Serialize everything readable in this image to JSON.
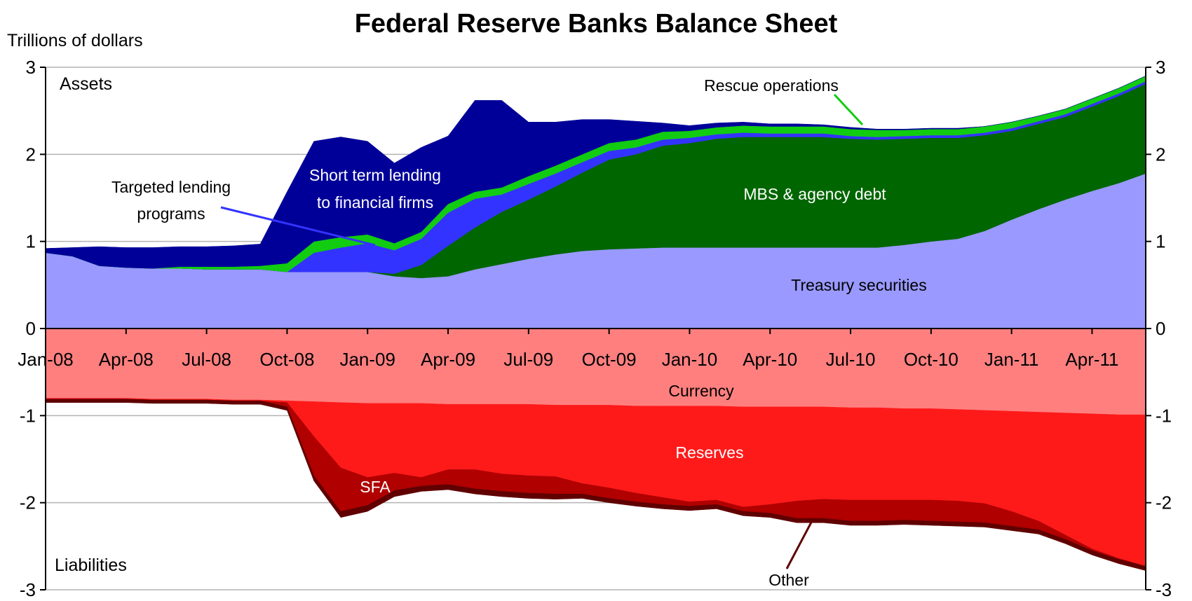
{
  "chart_data": {
    "type": "area",
    "title": "Federal Reserve Banks Balance Sheet",
    "ylabel": "Trillions of dollars",
    "ylim": [
      -3,
      3
    ],
    "yticks": [
      3,
      2,
      1,
      0,
      -1,
      -2,
      -3
    ],
    "x_tick_labels": [
      "Jan-08",
      "Apr-08",
      "Jul-08",
      "Oct-08",
      "Jan-09",
      "Apr-09",
      "Jul-09",
      "Oct-09",
      "Jan-10",
      "Apr-10",
      "Jul-10",
      "Oct-10",
      "Jan-11",
      "Apr-11"
    ],
    "x": [
      "Jan-08",
      "Feb-08",
      "Mar-08",
      "Apr-08",
      "May-08",
      "Jun-08",
      "Jul-08",
      "Aug-08",
      "Sep-08",
      "Oct-08",
      "Nov-08",
      "Dec-08",
      "Jan-09",
      "Feb-09",
      "Mar-09",
      "Apr-09",
      "May-09",
      "Jun-09",
      "Jul-09",
      "Aug-09",
      "Sep-09",
      "Oct-09",
      "Nov-09",
      "Dec-09",
      "Jan-10",
      "Feb-10",
      "Mar-10",
      "Apr-10",
      "May-10",
      "Jun-10",
      "Jul-10",
      "Aug-10",
      "Sep-10",
      "Oct-10",
      "Nov-10",
      "Dec-10",
      "Jan-11",
      "Feb-11",
      "Mar-11",
      "Apr-11",
      "May-11",
      "Jun-11"
    ],
    "panel_labels": {
      "assets": "Assets",
      "liabilities": "Liabilities"
    },
    "asset_series": [
      {
        "name": "Treasury securities",
        "color": "#9999ff",
        "values": [
          0.87,
          0.83,
          0.72,
          0.7,
          0.69,
          0.69,
          0.68,
          0.68,
          0.68,
          0.65,
          0.65,
          0.65,
          0.65,
          0.6,
          0.58,
          0.6,
          0.68,
          0.74,
          0.8,
          0.85,
          0.89,
          0.91,
          0.92,
          0.93,
          0.93,
          0.93,
          0.93,
          0.93,
          0.93,
          0.93,
          0.93,
          0.93,
          0.96,
          1.0,
          1.03,
          1.12,
          1.25,
          1.37,
          1.48,
          1.58,
          1.67,
          1.78
        ]
      },
      {
        "name": "MBS & agency debt",
        "color": "#006600",
        "values": [
          0,
          0,
          0,
          0,
          0,
          0,
          0,
          0,
          0,
          0,
          0,
          0,
          0,
          0.03,
          0.15,
          0.35,
          0.48,
          0.6,
          0.68,
          0.78,
          0.9,
          1.03,
          1.08,
          1.17,
          1.2,
          1.25,
          1.27,
          1.27,
          1.27,
          1.27,
          1.25,
          1.24,
          1.22,
          1.19,
          1.16,
          1.1,
          1.02,
          0.98,
          0.95,
          0.97,
          1.0,
          1.03
        ]
      },
      {
        "name": "Short term lending to financial firms (light)",
        "color": "#3333ff",
        "values": [
          0,
          0,
          0,
          0,
          0,
          0,
          0,
          0,
          0,
          0,
          0.22,
          0.28,
          0.33,
          0.27,
          0.3,
          0.38,
          0.33,
          0.2,
          0.18,
          0.15,
          0.12,
          0.1,
          0.08,
          0.07,
          0.06,
          0.05,
          0.05,
          0.04,
          0.04,
          0.04,
          0.03,
          0.03,
          0.03,
          0.03,
          0.03,
          0.03,
          0.03,
          0.03,
          0.03,
          0.03,
          0.03,
          0.03
        ]
      },
      {
        "name": "Rescue operations",
        "color": "#11cc11",
        "values": [
          0,
          0,
          0,
          0,
          0,
          0.02,
          0.03,
          0.03,
          0.04,
          0.1,
          0.13,
          0.12,
          0.1,
          0.08,
          0.08,
          0.1,
          0.08,
          0.08,
          0.09,
          0.09,
          0.09,
          0.09,
          0.09,
          0.09,
          0.08,
          0.08,
          0.08,
          0.08,
          0.08,
          0.08,
          0.08,
          0.08,
          0.07,
          0.07,
          0.07,
          0.07,
          0.07,
          0.06,
          0.06,
          0.06,
          0.06,
          0.06
        ]
      },
      {
        "name": "Short term lending to financial firms (dark)",
        "color": "#000099",
        "values": [
          0.05,
          0.1,
          0.22,
          0.23,
          0.24,
          0.23,
          0.23,
          0.24,
          0.25,
          0.82,
          1.15,
          1.15,
          1.07,
          0.92,
          0.97,
          0.78,
          1.05,
          1.0,
          0.62,
          0.5,
          0.4,
          0.27,
          0.21,
          0.1,
          0.06,
          0.05,
          0.04,
          0.03,
          0.03,
          0.02,
          0.02,
          0.01,
          0.01,
          0.01,
          0.01,
          0,
          0,
          0,
          0,
          0,
          0,
          0
        ]
      }
    ],
    "liability_series": [
      {
        "name": "Currency",
        "color": "#ff7f7f",
        "values": [
          0.8,
          0.8,
          0.8,
          0.8,
          0.81,
          0.81,
          0.81,
          0.82,
          0.82,
          0.83,
          0.84,
          0.85,
          0.86,
          0.86,
          0.86,
          0.87,
          0.87,
          0.87,
          0.87,
          0.88,
          0.88,
          0.88,
          0.89,
          0.89,
          0.89,
          0.89,
          0.9,
          0.9,
          0.9,
          0.9,
          0.91,
          0.91,
          0.92,
          0.92,
          0.93,
          0.94,
          0.95,
          0.96,
          0.97,
          0.98,
          0.99,
          0.99
        ]
      },
      {
        "name": "Reserves",
        "color": "#ff1a1a",
        "values": [
          0.01,
          0.01,
          0.01,
          0.01,
          0.01,
          0.01,
          0.01,
          0.01,
          0.01,
          0.02,
          0.4,
          0.75,
          0.85,
          0.8,
          0.85,
          0.75,
          0.75,
          0.8,
          0.82,
          0.82,
          0.9,
          0.95,
          1.0,
          1.05,
          1.1,
          1.08,
          1.15,
          1.12,
          1.08,
          1.06,
          1.06,
          1.06,
          1.05,
          1.05,
          1.05,
          1.07,
          1.15,
          1.25,
          1.4,
          1.55,
          1.65,
          1.74
        ]
      },
      {
        "name": "SFA",
        "color": "#b00000",
        "values": [
          0,
          0,
          0,
          0,
          0,
          0,
          0,
          0,
          0,
          0.05,
          0.45,
          0.5,
          0.32,
          0.2,
          0.1,
          0.17,
          0.22,
          0.2,
          0.2,
          0.2,
          0.12,
          0.12,
          0.1,
          0.08,
          0.05,
          0.05,
          0.05,
          0.1,
          0.2,
          0.22,
          0.24,
          0.24,
          0.23,
          0.24,
          0.24,
          0.22,
          0.17,
          0.1,
          0.05,
          0.02,
          0.01,
          0
        ]
      },
      {
        "name": "Other",
        "color": "#600000",
        "values": [
          0.04,
          0.04,
          0.04,
          0.04,
          0.04,
          0.04,
          0.04,
          0.04,
          0.04,
          0.04,
          0.06,
          0.07,
          0.07,
          0.07,
          0.06,
          0.06,
          0.06,
          0.06,
          0.06,
          0.06,
          0.05,
          0.05,
          0.05,
          0.05,
          0.05,
          0.05,
          0.05,
          0.05,
          0.05,
          0.05,
          0.05,
          0.05,
          0.05,
          0.05,
          0.05,
          0.05,
          0.05,
          0.05,
          0.05,
          0.05,
          0.05,
          0.05
        ]
      }
    ],
    "annotations": {
      "treasury": "Treasury securities",
      "mbs": "MBS & agency debt",
      "rescue": "Rescue operations",
      "targeted_line1": "Targeted lending",
      "targeted_line2": "programs",
      "short_term_line1": "Short term lending",
      "short_term_line2": "to financial firms",
      "currency": "Currency",
      "reserves": "Reserves",
      "sfa": "SFA",
      "other": "Other"
    },
    "grid": true,
    "legend": "none (direct labels)"
  }
}
